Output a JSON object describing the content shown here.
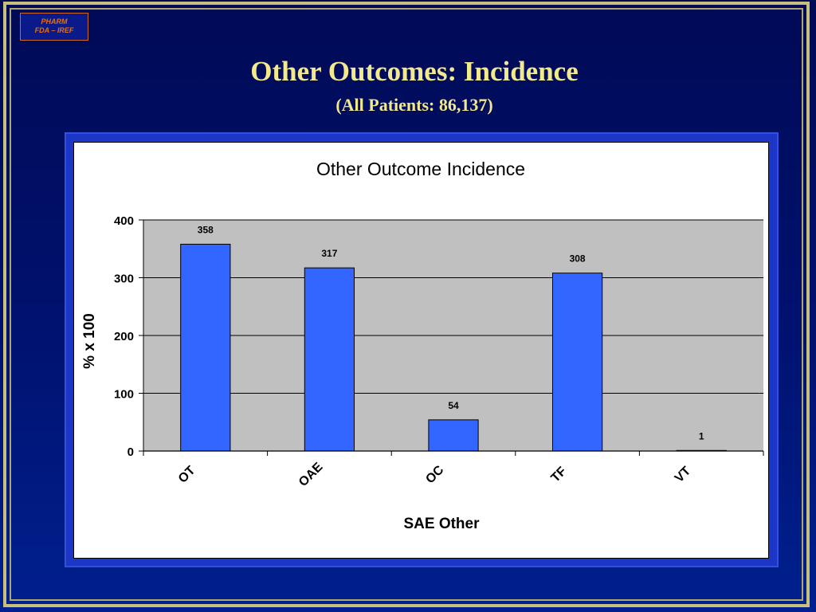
{
  "slide": {
    "logo_line1": "PHARM",
    "logo_line2": "FDA – IREF",
    "title": "Other Outcomes: Incidence",
    "subtitle": "(All Patients: 86,137)"
  },
  "colors": {
    "background": "#000f66",
    "title_text": "#f2e88c",
    "bar_fill": "#3366ff",
    "plot_area": "#c0c0c0"
  },
  "chart_data": {
    "type": "bar",
    "title": "Other Outcome Incidence",
    "xlabel": "SAE Other",
    "ylabel": "% x 100",
    "categories": [
      "OT",
      "OAE",
      "OC",
      "TF",
      "VT"
    ],
    "values": [
      358,
      317,
      54,
      308,
      1
    ],
    "data_labels": [
      "358",
      "317",
      "54",
      "308",
      "1"
    ],
    "ylim": [
      0,
      400
    ],
    "yticks": [
      0,
      100,
      200,
      300,
      400
    ],
    "grid": true,
    "legend": "none"
  }
}
